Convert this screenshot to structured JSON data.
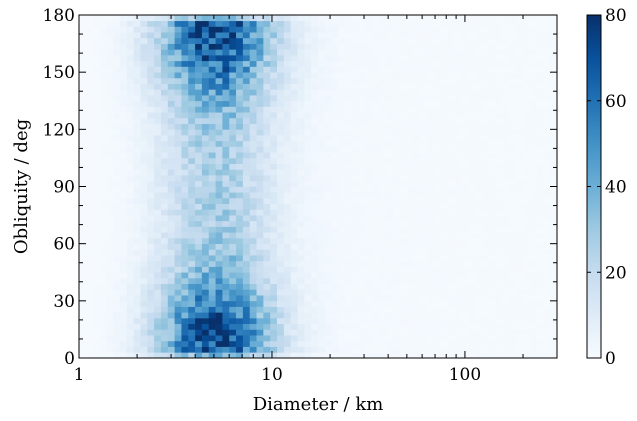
{
  "chart_data": {
    "type": "heatmap",
    "xlabel": "Diameter / km",
    "ylabel": "Obliquity / deg",
    "xscale": "log",
    "xlim": [
      1,
      300
    ],
    "ylim": [
      0,
      180
    ],
    "x_ticks": [
      {
        "value": 1,
        "label": "1"
      },
      {
        "value": 10,
        "label": "10"
      },
      {
        "value": 100,
        "label": "100"
      }
    ],
    "y_ticks": [
      {
        "value": 0,
        "label": "0"
      },
      {
        "value": 30,
        "label": "30"
      },
      {
        "value": 60,
        "label": "60"
      },
      {
        "value": 90,
        "label": "90"
      },
      {
        "value": 120,
        "label": "120"
      },
      {
        "value": 150,
        "label": "150"
      },
      {
        "value": 180,
        "label": "180"
      }
    ],
    "colormap": "Blues",
    "colorbar": {
      "range": [
        0,
        80
      ],
      "ticks": [
        {
          "value": 0,
          "label": "0"
        },
        {
          "value": 20,
          "label": "20"
        },
        {
          "value": 40,
          "label": "40"
        },
        {
          "value": 60,
          "label": "60"
        },
        {
          "value": 80,
          "label": "80"
        }
      ],
      "colors": [
        "#f7fbff",
        "#deebf7",
        "#c6dbef",
        "#9ecae1",
        "#6baed6",
        "#4292c6",
        "#2171b5",
        "#08519c",
        "#08306b"
      ]
    },
    "density_model": {
      "description_free_params": true,
      "peak_diameter_km": 5,
      "log_diameter_sigma": 0.2,
      "obliquity_peaks_deg": [
        10,
        170
      ],
      "obliquity_peak_value": 72,
      "obliquity_mid_value": 26,
      "tail_value": 1.5
    },
    "bins": {
      "x": 70,
      "y": 60
    },
    "grid": false,
    "colorbar_position": "right"
  }
}
